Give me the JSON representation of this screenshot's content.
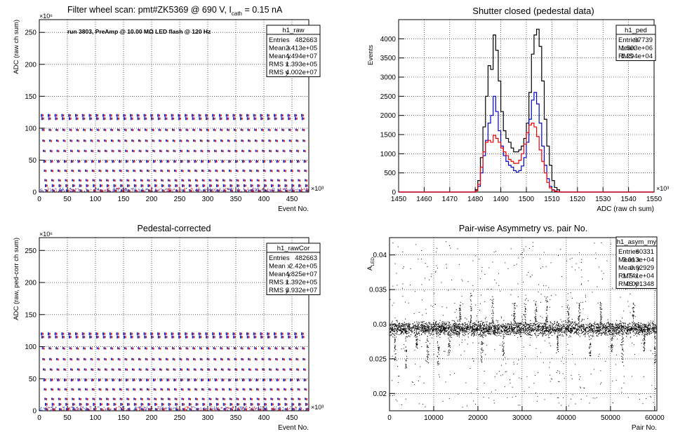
{
  "chart_data": [
    {
      "type": "scatter",
      "title_prefix": "Filter wheel scan: pmt#ZK5369 @   690 V, I",
      "title_sub": "cath",
      "title_suffix": " = 0.15 nA",
      "annotation": "run 3803, PreAmp @ 10.00 MΩ LED flash @  120 Hz",
      "xlabel": "Event No.",
      "ylabel": "ADC (raw ch sum)",
      "x_exponent": "×10³",
      "y_exponent": "×10⁶",
      "xlim": [
        0,
        480
      ],
      "ylim": [
        0,
        270
      ],
      "xticks": [
        0,
        50,
        100,
        150,
        200,
        250,
        300,
        350,
        400,
        450
      ],
      "yticks": [
        0,
        50,
        100,
        150,
        200,
        250
      ],
      "step_levels": [
        120,
        115,
        97,
        80,
        64,
        48,
        33,
        18,
        10,
        2
      ],
      "period_x": 12.2,
      "first_x": 4,
      "stats": {
        "name": "h1_raw",
        "rows": [
          [
            "Entries",
            "482663"
          ],
          [
            "Mean x",
            "2.413e+05"
          ],
          [
            "Mean y",
            "4.494e+07"
          ],
          [
            "RMS x",
            "1.393e+05"
          ],
          [
            "RMS y",
            "4.002e+07"
          ]
        ]
      }
    },
    {
      "type": "line",
      "title": "Shutter closed (pedestal data)",
      "xlabel": "ADC (raw ch sum)",
      "ylabel": "Events",
      "x_exponent": "×10³",
      "xlim": [
        1450,
        1550
      ],
      "ylim": [
        0,
        4500
      ],
      "xticks": [
        1450,
        1460,
        1470,
        1480,
        1490,
        1500,
        1510,
        1520,
        1530,
        1540,
        1550
      ],
      "yticks": [
        0,
        500,
        1000,
        1500,
        2000,
        2500,
        3000,
        3500,
        4000
      ],
      "bin_edges_start": 1480,
      "bin_width": 1,
      "series": [
        {
          "color": "#000000",
          "values": [
            60,
            300,
            900,
            1700,
            2500,
            3300,
            3200,
            4100,
            3700,
            2900,
            2100,
            1600,
            1400,
            1300,
            1150,
            1050,
            1050,
            1100,
            1200,
            1400,
            1800,
            2600,
            3600,
            4100,
            4250,
            3800,
            2900,
            1900,
            1200,
            700,
            300,
            120,
            60
          ]
        },
        {
          "color": "#0000cc",
          "values": [
            30,
            150,
            500,
            950,
            1350,
            1800,
            2000,
            2500,
            2100,
            1600,
            1200,
            950,
            800,
            700,
            650,
            560,
            520,
            560,
            680,
            900,
            1300,
            1900,
            2400,
            2600,
            2300,
            1800,
            1200,
            700,
            350,
            150,
            60,
            30,
            10
          ]
        },
        {
          "color": "#ee0000",
          "values": [
            30,
            200,
            650,
            1050,
            1300,
            1350,
            1300,
            1480,
            1400,
            1300,
            1150,
            1050,
            950,
            850,
            800,
            750,
            750,
            830,
            1000,
            1250,
            1550,
            1750,
            1800,
            1700,
            1450,
            1100,
            800,
            500,
            250,
            110,
            50,
            20,
            10
          ]
        }
      ],
      "stats": {
        "name": "h1_ped",
        "rows": [
          [
            "Entries",
            "97739"
          ],
          [
            "Mean",
            "1.503e+06"
          ],
          [
            "RMS",
            "1.294e+04"
          ]
        ]
      }
    },
    {
      "type": "scatter",
      "title": "Pedestal-corrected",
      "xlabel": "Event No.",
      "ylabel": "ADC (raw, ped-corr ch sum)",
      "x_exponent": "×10³",
      "y_exponent": "×10⁶",
      "xlim": [
        0,
        480
      ],
      "ylim": [
        0,
        270
      ],
      "xticks": [
        0,
        50,
        100,
        150,
        200,
        250,
        300,
        350,
        400,
        450
      ],
      "yticks": [
        0,
        50,
        100,
        150,
        200,
        250
      ],
      "step_levels": [
        120,
        115,
        97,
        80,
        64,
        48,
        33,
        18,
        10,
        2
      ],
      "period_x": 12.2,
      "first_x": 4,
      "stats": {
        "name": "h1_rawCor",
        "rows": [
          [
            "Entries",
            "482663"
          ],
          [
            "Mean x",
            "2.42e+05"
          ],
          [
            "Mean y",
            "4.825e+07"
          ],
          [
            "RMS x",
            "1.392e+05"
          ],
          [
            "RMS y",
            "3.932e+07"
          ]
        ]
      }
    },
    {
      "type": "scatter",
      "title": "Pair-wise Asymmetry vs. pair No.",
      "xlabel": "Pair No.",
      "ylabel_main": "A",
      "ylabel_sub": "LED",
      "xlim": [
        0,
        60500
      ],
      "ylim": [
        0.0175,
        0.0425
      ],
      "xticks": [
        0,
        10000,
        20000,
        30000,
        40000,
        50000,
        60000
      ],
      "yticks": [
        0.02,
        0.025,
        0.03,
        0.035,
        0.04
      ],
      "band_center": 0.0294,
      "band_halfwidth": 0.0008,
      "spike_period": 2450,
      "stats": {
        "name": "h1_asym_my",
        "rows": [
          [
            "Entries",
            "60331"
          ],
          [
            "Mean x",
            "3.013e+04"
          ],
          [
            "Mean y",
            "0.02929"
          ],
          [
            "RMS x",
            "1.741e+04"
          ],
          [
            "RMS y",
            "0.001348"
          ]
        ]
      }
    }
  ]
}
